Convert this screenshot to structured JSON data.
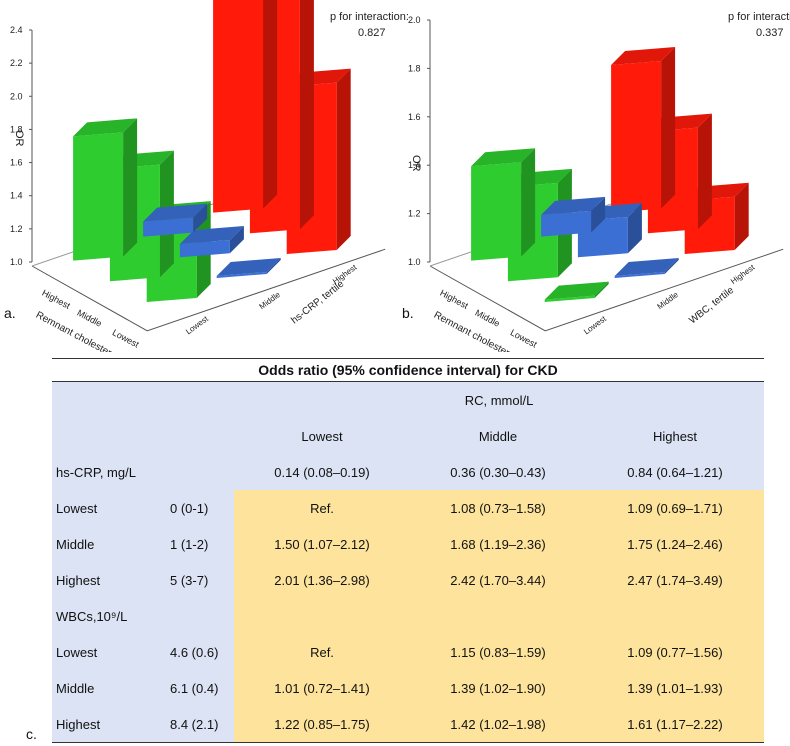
{
  "chart_data": [
    {
      "type": "bar3d",
      "panel_label": "a.",
      "ylabel": "OR",
      "ylim": [
        1.0,
        2.4
      ],
      "yticks": [
        "1.0",
        "1.2",
        "1.4",
        "1.6",
        "1.8",
        "2.0",
        "2.2",
        "2.4"
      ],
      "x_title": "Remnant cholesterol, tertile",
      "x_categories": [
        "Highest",
        "Middle",
        "Lowest"
      ],
      "z_title": "hs-CRP, tertile",
      "z_categories": [
        "Lowest",
        "Middle",
        "Highest"
      ],
      "p_label": "p for interaction:",
      "p_value": "0.827",
      "series": [
        {
          "name": "Lowest",
          "color": "#3b6fd4",
          "values": [
            1.09,
            1.08,
            1.0
          ]
        },
        {
          "name": "Middle",
          "color": "#2ecc2e",
          "values": [
            1.75,
            1.68,
            1.5
          ]
        },
        {
          "name": "Highest",
          "color": "#ff1a0a",
          "values": [
            2.47,
            2.42,
            2.01
          ]
        }
      ]
    },
    {
      "type": "bar3d",
      "panel_label": "b.",
      "ylabel": "OR",
      "ylim": [
        1.0,
        2.0
      ],
      "yticks": [
        "1.0",
        "1.2",
        "1.4",
        "1.6",
        "1.8",
        "2.0"
      ],
      "x_title": "Remnant cholesterol, tertile",
      "x_categories": [
        "Highest",
        "Middle",
        "Lowest"
      ],
      "z_title": "WBC, tertile",
      "z_categories": [
        "Lowest",
        "Middle",
        "Highest"
      ],
      "p_label": "p for interaction:",
      "p_value": "0.337",
      "series": [
        {
          "name": "Lowest",
          "color": "#3b6fd4",
          "values": [
            1.09,
            1.15,
            1.0
          ]
        },
        {
          "name": "Middle",
          "color": "#2ecc2e",
          "values": [
            1.39,
            1.39,
            1.01
          ]
        },
        {
          "name": "Highest",
          "color": "#ff1a0a",
          "values": [
            1.61,
            1.42,
            1.22
          ]
        }
      ]
    }
  ],
  "table": {
    "panel_label": "c.",
    "title": "Odds ratio (95% confidence interval) for CKD",
    "rc_header": "RC, mmol/L",
    "columns": [
      "Lowest",
      "Middle",
      "Highest"
    ],
    "hscrp_label": "hs-CRP, mg/L",
    "hscrp_ranges": [
      "0.14 (0.08–0.19)",
      "0.36 (0.30–0.43)",
      "0.84 (0.64–1.21)"
    ],
    "hscrp_rows": [
      {
        "label": "Lowest",
        "value": "0 (0-1)",
        "cells": [
          "Ref.",
          "1.08 (0.73–1.58)",
          "1.09 (0.69–1.71)"
        ]
      },
      {
        "label": "Middle",
        "value": "1 (1-2)",
        "cells": [
          "1.50 (1.07–2.12)",
          "1.68 (1.19–2.36)",
          "1.75 (1.24–2.46)"
        ]
      },
      {
        "label": "Highest",
        "value": "5 (3-7)",
        "cells": [
          "2.01 (1.36–2.98)",
          "2.42 (1.70–3.44)",
          "2.47 (1.74–3.49)"
        ]
      }
    ],
    "wbc_label": "WBCs,10⁹/L",
    "wbc_rows": [
      {
        "label": "Lowest",
        "value": "4.6 (0.6)",
        "cells": [
          "Ref.",
          "1.15 (0.83–1.59)",
          "1.09 (0.77–1.56)"
        ]
      },
      {
        "label": "Middle",
        "value": "6.1 (0.4)",
        "cells": [
          "1.01 (0.72–1.41)",
          "1.39 (1.02–1.90)",
          "1.39 (1.01–1.93)"
        ]
      },
      {
        "label": "Highest",
        "value": "8.4 (2.1)",
        "cells": [
          "1.22 (0.85–1.75)",
          "1.42 (1.02–1.98)",
          "1.61 (1.17–2.22)"
        ]
      }
    ]
  }
}
